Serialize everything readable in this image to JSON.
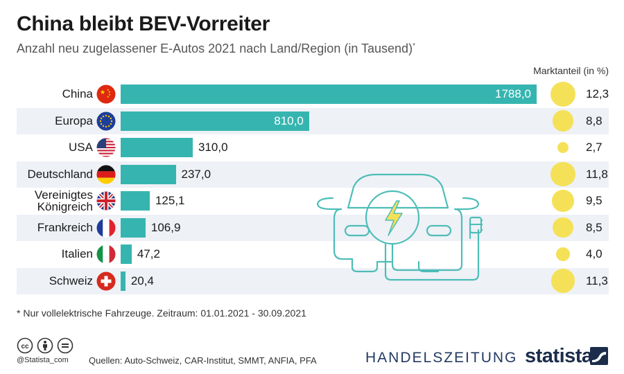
{
  "title": "China bleibt BEV-Vorreiter",
  "subtitle": "Anzahl neu zugelassener E-Autos 2021 nach Land/Region (in Tausend)",
  "subtitle_mark": "*",
  "share_header": "Marktanteil (in %)",
  "footnote": "* Nur vollelektrische Fahrzeuge. Zeitraum: 01.01.2021 - 30.09.2021",
  "handle": "@Statista_com",
  "sources": "Quellen: Auto-Schweiz, CAR-Institut, SMMT, ANFIA, PFA",
  "brand_partner": "HANDELSZEITUNG",
  "brand": "statista",
  "colors": {
    "bar": "#36b5b0",
    "dot": "#f5e157",
    "stripe": "#eef1f6",
    "car_line": "#4dbdb8"
  },
  "chart_data": {
    "type": "bar",
    "orientation": "horizontal",
    "title": "China bleibt BEV-Vorreiter",
    "subtitle": "Anzahl neu zugelassener E-Autos 2021 nach Land/Region (in Tausend)",
    "categories": [
      "China",
      "Europa",
      "USA",
      "Deutschland",
      "Vereinigtes\nKönigreich",
      "Frankreich",
      "Italien",
      "Schweiz"
    ],
    "flags": [
      "china-flag",
      "eu-flag",
      "usa-flag",
      "germany-flag",
      "uk-flag",
      "france-flag",
      "italy-flag",
      "switzerland-flag"
    ],
    "values": [
      1788.0,
      810.0,
      310.0,
      237.0,
      125.1,
      106.9,
      47.2,
      20.4
    ],
    "value_labels": [
      "1788,0",
      "810,0",
      "310,0",
      "237,0",
      "125,1",
      "106,9",
      "47,2",
      "20,4"
    ],
    "market_share": [
      12.3,
      8.8,
      2.7,
      11.8,
      9.5,
      8.5,
      4.0,
      11.3
    ],
    "market_share_labels": [
      "12,3",
      "8,8",
      "2,7",
      "11,8",
      "9,5",
      "8,5",
      "4,0",
      "11,3"
    ],
    "market_share_title": "Marktanteil (in %)",
    "xlim": [
      0,
      1788
    ],
    "grid": false
  }
}
